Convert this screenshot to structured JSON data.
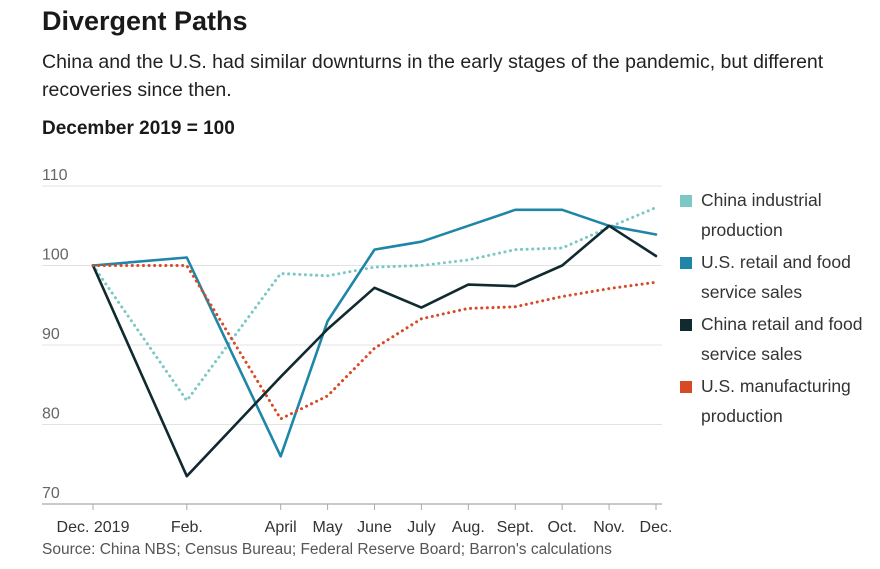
{
  "title": "Divergent Paths",
  "subtitle": "China and the U.S. had similar downturns in the early stages of the pandemic, but different recoveries since then.",
  "units_label": "December 2019 = 100",
  "source": "Source: China NBS; Census Bureau; Federal Reserve Board; Barron's calculations",
  "chart_data": {
    "type": "line",
    "x": [
      "2019-12-01",
      "2020-02-01",
      "2020-04-01",
      "2020-05-01",
      "2020-06-01",
      "2020-07-01",
      "2020-08-01",
      "2020-09-01",
      "2020-10-01",
      "2020-11-01",
      "2020-12-01"
    ],
    "x_tick_labels": [
      "Dec. 2019",
      "Feb.",
      "April",
      "May",
      "June",
      "July",
      "Aug.",
      "Sept.",
      "Oct.",
      "Nov.",
      "Dec."
    ],
    "ylim": [
      70,
      110
    ],
    "y_ticks": [
      70,
      80,
      90,
      100,
      110
    ],
    "grid": true,
    "legend_position": "right",
    "series": [
      {
        "name": "China industrial production",
        "color": "#7cc8c4",
        "style": "dotted",
        "values": [
          100,
          83,
          99,
          98.7,
          99.8,
          100,
          100.7,
          102,
          102.2,
          104.8,
          107.3
        ]
      },
      {
        "name": "U.S. retail and food service sales",
        "color": "#1f86a8",
        "style": "solid",
        "values": [
          100,
          101,
          76,
          93,
          102,
          103,
          105,
          107,
          107,
          105,
          103.9
        ]
      },
      {
        "name": "China retail and food service sales",
        "color": "#102a30",
        "style": "solid",
        "values": [
          100,
          73.5,
          86,
          92,
          97.2,
          94.7,
          97.6,
          97.4,
          100,
          105,
          101.2
        ]
      },
      {
        "name": "U.S. manufacturing production",
        "color": "#d84a26",
        "style": "dotted",
        "values": [
          100,
          100,
          80.7,
          83.6,
          89.6,
          93.3,
          94.6,
          94.8,
          96.1,
          97.1,
          97.9
        ]
      }
    ]
  }
}
